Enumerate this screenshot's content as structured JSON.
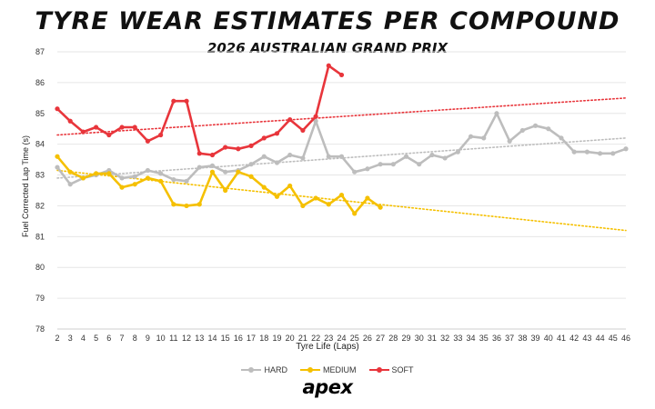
{
  "chart_data": {
    "type": "line",
    "title": "TYRE WEAR ESTIMATES PER COMPOUND",
    "subtitle": "2026 AUSTRALIAN GRAND PRIX",
    "xlabel": "Tyre Life (Laps)",
    "ylabel": "Fuel Corrected Lap Time (s)",
    "ylim": [
      78,
      87
    ],
    "yticks": [
      78,
      79,
      80,
      81,
      82,
      83,
      84,
      85,
      86,
      87
    ],
    "xlim": [
      2,
      46
    ],
    "grid": "horizontal",
    "legend_position": "bottom-center",
    "x": [
      2,
      3,
      4,
      5,
      6,
      7,
      8,
      9,
      10,
      11,
      12,
      13,
      14,
      15,
      16,
      17,
      18,
      19,
      20,
      21,
      22,
      23,
      24,
      25,
      26,
      27,
      28,
      29,
      30,
      31,
      32,
      33,
      34,
      35,
      36,
      37,
      38,
      39,
      40,
      41,
      42,
      43,
      44,
      45,
      46
    ],
    "series": [
      {
        "name": "HARD",
        "color": "#bdbdbd",
        "x": [
          2,
          3,
          4,
          5,
          6,
          7,
          8,
          9,
          10,
          11,
          12,
          13,
          14,
          15,
          16,
          17,
          18,
          19,
          20,
          21,
          22,
          23,
          24,
          25,
          26,
          27,
          28,
          29,
          30,
          31,
          32,
          33,
          34,
          35,
          36,
          37,
          38,
          39,
          40,
          41,
          42,
          43,
          44,
          45,
          46
        ],
        "values": [
          83.25,
          82.7,
          82.9,
          83.0,
          83.15,
          82.9,
          82.95,
          83.15,
          83.05,
          82.85,
          82.8,
          83.25,
          83.3,
          83.1,
          83.15,
          83.35,
          83.6,
          83.4,
          83.65,
          83.55,
          84.75,
          83.6,
          83.6,
          83.1,
          83.2,
          83.35,
          83.35,
          83.6,
          83.35,
          83.65,
          83.55,
          83.75,
          84.25,
          84.2,
          85.0,
          84.1,
          84.45,
          84.6,
          84.5,
          84.2,
          83.75,
          83.75,
          83.7,
          83.7,
          83.85
        ],
        "trend": [
          82.9,
          84.2
        ]
      },
      {
        "name": "MEDIUM",
        "color": "#f5c000",
        "x": [
          2,
          3,
          4,
          5,
          6,
          7,
          8,
          9,
          10,
          11,
          12,
          13,
          14,
          15,
          16,
          17,
          18,
          19,
          20,
          21,
          22,
          23,
          24,
          25,
          26,
          27
        ],
        "values": [
          83.6,
          83.1,
          82.9,
          83.05,
          83.05,
          82.6,
          82.7,
          82.9,
          82.8,
          82.05,
          82.0,
          82.05,
          83.1,
          82.5,
          83.1,
          82.95,
          82.6,
          82.3,
          82.65,
          82.0,
          82.25,
          82.05,
          82.35,
          81.75,
          82.25,
          81.95
        ],
        "trend": [
          83.15,
          81.2
        ]
      },
      {
        "name": "SOFT",
        "color": "#e8353b",
        "x": [
          2,
          3,
          4,
          5,
          6,
          7,
          8,
          9,
          10,
          11,
          12,
          13,
          14,
          15,
          16,
          17,
          18,
          19,
          20,
          21,
          22,
          23,
          24
        ],
        "values": [
          85.15,
          84.75,
          84.4,
          84.55,
          84.3,
          84.55,
          84.55,
          84.1,
          84.3,
          85.4,
          85.4,
          83.7,
          83.65,
          83.9,
          83.85,
          83.95,
          84.2,
          84.35,
          84.8,
          84.45,
          84.9,
          86.55,
          86.25
        ],
        "trend": [
          84.3,
          85.5
        ]
      }
    ]
  },
  "legend": {
    "hard": "HARD",
    "medium": "MEDIUM",
    "soft": "SOFT"
  },
  "brand": {
    "logo_text": "apex"
  }
}
